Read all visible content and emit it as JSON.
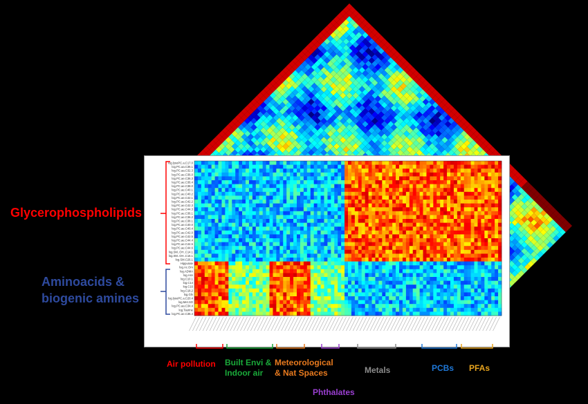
{
  "figure": {
    "groups_left": [
      {
        "label": "Glycerophospholipids",
        "color": "#ff0000"
      },
      {
        "label": "Aminoacids &",
        "label2": "biogenic amines",
        "color": "#2e4a9e"
      }
    ],
    "exposure_categories": [
      {
        "label": "Air pollution",
        "color": "#ff0000"
      },
      {
        "label": "Built Envi &",
        "label2": "Indoor air",
        "color": "#1aaa3a"
      },
      {
        "label": "Meteorological",
        "label2": "& Nat Spaces",
        "color": "#e87a1e"
      },
      {
        "label": "Phthalates",
        "color": "#9a3fd0"
      },
      {
        "label": "Metals",
        "color": "#8c8c8c"
      },
      {
        "label": "PCBs",
        "color": "#1f78d8"
      },
      {
        "label": "PFAs",
        "color": "#e8a41e"
      }
    ],
    "row_labels": [
      "log.lysoPC.a.C17.0",
      "log.PC.aa.C36.1",
      "log.PC.aa.C32.3",
      "log.PC.ae.C36.0",
      "log.PC.ae.C36.3",
      "log.PC.ae.C36.4",
      "log.PC.ae.C38.0",
      "log.PC.ae.C40.1",
      "log.PC.ae.C40.2",
      "log.PC.ae.C42.1",
      "log.PC.ae.C42.2",
      "log.PC.ae.C42.3",
      "log.PC.ae.C44.3",
      "log.PC.ae.C36.1",
      "log.PC.ae.C36.2",
      "log.PC.ae.C38.1",
      "log.PC.ae.C40.0",
      "log.PC.ae.C40.4",
      "log.PC.ae.C42.0",
      "log.PC.ae.C42.5",
      "log.PC.ae.C44.4",
      "log.PC.ae.C44.5",
      "log.PC.ae.C44.6",
      "log.SM..OH..C14.1",
      "log.SM..OH..C16.1",
      "log.SM.C26.1",
      "Hippurate",
      "log.Ac.Orn",
      "log.ADMA",
      "log.Asn",
      "log.C10.1",
      "log.C14",
      "log.C16",
      "log.C18.2",
      "log.Gln",
      "log.lysoPC.a.C20.4",
      "log.Met.SO",
      "log.PC.aa.C34.4",
      "log.Taurine",
      "log.PC.ae.C36.4"
    ]
  },
  "chart_data": {
    "type": "heatmap",
    "colormap": "jet",
    "rows": 40,
    "row_groups": [
      {
        "name": "Glycerophospholipids",
        "rows": 26
      },
      {
        "name": "Aminoacids & biogenic amines",
        "rows": 14
      }
    ],
    "columns": 90,
    "column_groups": [
      {
        "name": "Air pollution",
        "columns": 10
      },
      {
        "name": "Built Envi & Indoor air",
        "columns": 12
      },
      {
        "name": "Meteorological & Nat Spaces",
        "columns": 12
      },
      {
        "name": "Phthalates",
        "columns": 10
      },
      {
        "name": "Metals",
        "columns": 14
      },
      {
        "name": "PCBs",
        "columns": 16
      },
      {
        "name": "PFAs",
        "columns": 16
      }
    ],
    "block_pattern": [
      {
        "rows": "Glycerophospholipids",
        "columns": "Air pollution",
        "level": "low"
      },
      {
        "rows": "Glycerophospholipids",
        "columns": "Built Envi & Indoor air",
        "level": "low"
      },
      {
        "rows": "Glycerophospholipids",
        "columns": "Meteorological & Nat Spaces",
        "level": "low"
      },
      {
        "rows": "Glycerophospholipids",
        "columns": "Phthalates",
        "level": "low"
      },
      {
        "rows": "Glycerophospholipids",
        "columns": "Metals",
        "level": "high"
      },
      {
        "rows": "Glycerophospholipids",
        "columns": "PCBs",
        "level": "high"
      },
      {
        "rows": "Glycerophospholipids",
        "columns": "PFAs",
        "level": "high"
      },
      {
        "rows": "Aminoacids & biogenic amines",
        "columns": "Air pollution",
        "level": "high"
      },
      {
        "rows": "Aminoacids & biogenic amines",
        "columns": "Built Envi & Indoor air",
        "level": "mid"
      },
      {
        "rows": "Aminoacids & biogenic amines",
        "columns": "Meteorological & Nat Spaces",
        "level": "high"
      },
      {
        "rows": "Aminoacids & biogenic amines",
        "columns": "Phthalates",
        "level": "mid"
      },
      {
        "rows": "Aminoacids & biogenic amines",
        "columns": "Metals",
        "level": "low"
      },
      {
        "rows": "Aminoacids & biogenic amines",
        "columns": "PCBs",
        "level": "low"
      },
      {
        "rows": "Aminoacids & biogenic amines",
        "columns": "PFAs",
        "level": "low"
      }
    ],
    "background_triangle": {
      "type": "heatmap",
      "colormap": "jet",
      "note": "rotated upper-triangle correlation matrix"
    }
  }
}
